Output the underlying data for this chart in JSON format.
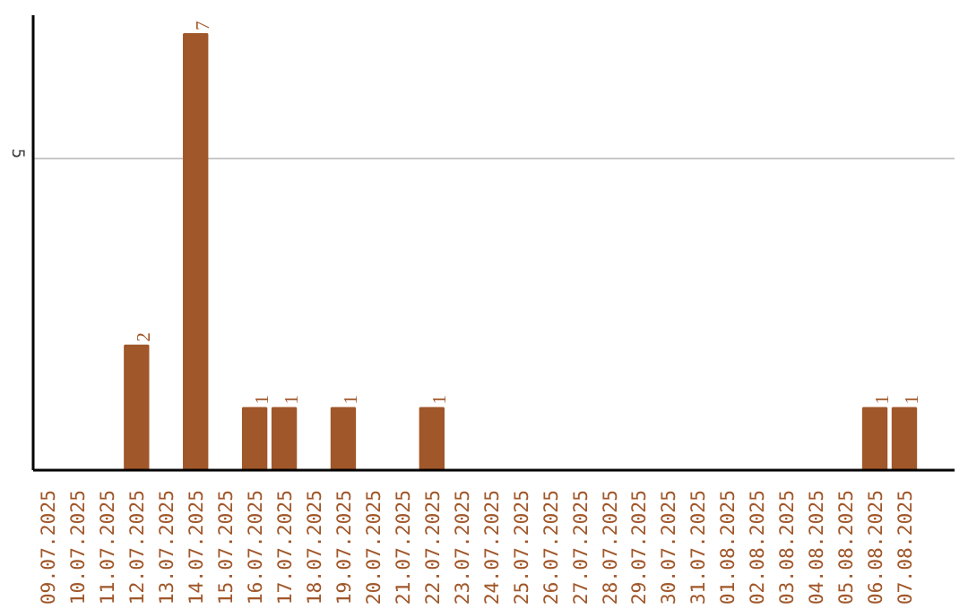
{
  "chart_data": {
    "type": "bar",
    "categories": [
      "09.07.2025",
      "10.07.2025",
      "11.07.2025",
      "12.07.2025",
      "13.07.2025",
      "14.07.2025",
      "15.07.2025",
      "16.07.2025",
      "17.07.2025",
      "18.07.2025",
      "19.07.2025",
      "20.07.2025",
      "21.07.2025",
      "22.07.2025",
      "23.07.2025",
      "24.07.2025",
      "25.07.2025",
      "26.07.2025",
      "27.07.2025",
      "28.07.2025",
      "29.07.2025",
      "30.07.2025",
      "31.07.2025",
      "01.08.2025",
      "02.08.2025",
      "03.08.2025",
      "04.08.2025",
      "05.08.2025",
      "06.08.2025",
      "07.08.2025"
    ],
    "values": [
      0,
      0,
      0,
      2,
      0,
      7,
      0,
      1,
      1,
      0,
      1,
      0,
      0,
      1,
      0,
      0,
      0,
      0,
      0,
      0,
      0,
      0,
      0,
      0,
      0,
      0,
      0,
      0,
      1,
      1
    ],
    "value_labels": [
      null,
      null,
      null,
      "2",
      null,
      "7",
      null,
      "1",
      "1",
      null,
      "1",
      null,
      null,
      "1",
      null,
      null,
      null,
      null,
      null,
      null,
      null,
      null,
      null,
      null,
      null,
      null,
      null,
      null,
      "1",
      "1"
    ],
    "color": "#a0572a",
    "ylim": [
      0,
      7.3
    ],
    "yticks": [
      5
    ],
    "grid": "y"
  }
}
